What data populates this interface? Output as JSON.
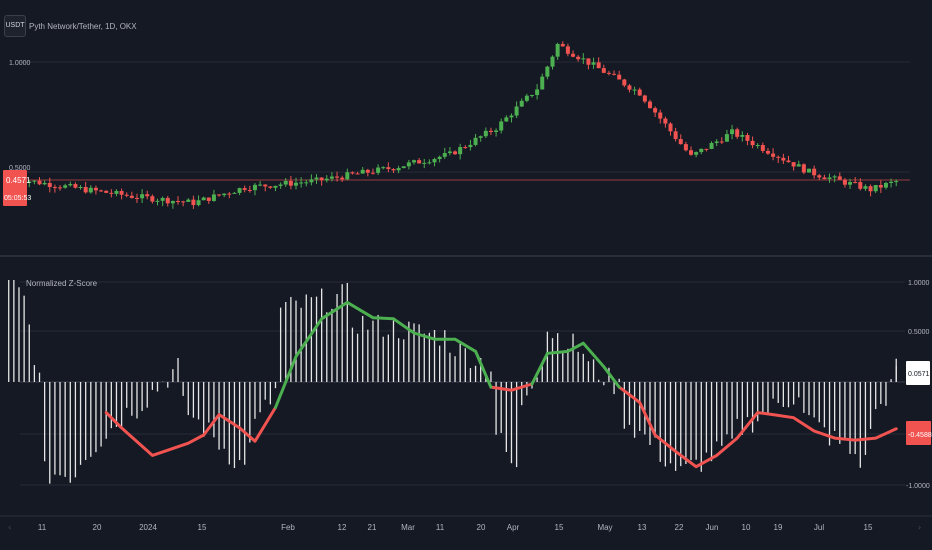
{
  "header": {
    "symbol_badge": "USDT",
    "symbol_title": "Pyth Network/Tether, 1D, OKX"
  },
  "price_axis": {
    "ticks": [
      "1.0000",
      "0.5000"
    ],
    "current_price": "0.4571",
    "countdown": "05:05:53"
  },
  "indicator": {
    "title": "Normalized Z-Score",
    "ticks": [
      "1.0000",
      "0.5000",
      "-1.0000"
    ],
    "last_bar_value": "0.0571",
    "last_line_value": "-0.4588"
  },
  "time_axis": {
    "labels": [
      "11",
      "20",
      "2024",
      "15",
      "Feb",
      "12",
      "21",
      "Mar",
      "11",
      "20",
      "Apr",
      "15",
      "May",
      "13",
      "22",
      "Jun",
      "10",
      "19",
      "Jul",
      "15"
    ]
  },
  "colors": {
    "background": "#151924",
    "bullish": "#4caf50",
    "bearish": "#f05350",
    "grid": "#262b37",
    "text": "#b2b5be",
    "histogram": "#e6e6e6"
  },
  "chart_data": [
    {
      "type": "candlestick",
      "title": "Pyth Network/Tether, 1D, OKX",
      "ylabel": "",
      "ylim": [
        0.3,
        1.15
      ],
      "y_ticks": [
        0.5,
        1.0
      ],
      "current_price": 0.4571,
      "segments": [
        {
          "from": "Dec 02",
          "to": "Dec 16",
          "start": 0.47,
          "end": 0.42
        },
        {
          "from": "Dec 16",
          "to": "Dec 25",
          "start": 0.42,
          "end": 0.39
        },
        {
          "from": "Dec 25",
          "to": "Jan 06",
          "start": 0.39,
          "end": 0.36
        },
        {
          "from": "Jan 06",
          "to": "Jan 16",
          "start": 0.36,
          "end": 0.43
        },
        {
          "from": "Jan 16",
          "to": "Jan 30",
          "start": 0.43,
          "end": 0.46
        },
        {
          "from": "Jan 30",
          "to": "Feb 14",
          "start": 0.46,
          "end": 0.52
        },
        {
          "from": "Feb 14",
          "to": "Feb 25",
          "start": 0.52,
          "end": 0.58
        },
        {
          "from": "Feb 25",
          "to": "Mar 05",
          "start": 0.58,
          "end": 0.7
        },
        {
          "from": "Mar 05",
          "to": "Mar 13",
          "start": 0.7,
          "end": 0.88
        },
        {
          "from": "Mar 13",
          "to": "Mar 17",
          "start": 0.88,
          "end": 1.08
        },
        {
          "from": "Mar 17",
          "to": "Mar 25",
          "start": 1.08,
          "end": 0.97
        },
        {
          "from": "Mar 25",
          "to": "Apr 02",
          "start": 0.97,
          "end": 0.86
        },
        {
          "from": "Apr 02",
          "to": "Apr 12",
          "start": 0.86,
          "end": 0.57
        },
        {
          "from": "Apr 12",
          "to": "Apr 20",
          "start": 0.57,
          "end": 0.68
        },
        {
          "from": "Apr 20",
          "to": "May 05",
          "start": 0.68,
          "end": 0.5
        },
        {
          "from": "May 05",
          "to": "May 17",
          "start": 0.5,
          "end": 0.42
        },
        {
          "from": "May 17",
          "to": "May 22",
          "start": 0.42,
          "end": 0.4571
        }
      ]
    },
    {
      "type": "line",
      "title": "Normalized Z-Score",
      "ylabel": "",
      "ylim": [
        -1.0,
        1.0
      ],
      "y_ticks": [
        -1.0,
        0.5,
        1.0
      ],
      "zero_line": true,
      "last_histogram_value": 0.0571,
      "last_line_value": -0.4588,
      "line_points": [
        {
          "x": "Dec 20",
          "y": -0.3
        },
        {
          "x": "Dec 23",
          "y": -0.45
        },
        {
          "x": "Dec 29",
          "y": -0.72
        },
        {
          "x": "Jan 05",
          "y": -0.6
        },
        {
          "x": "Jan 08",
          "y": -0.52
        },
        {
          "x": "Jan 11",
          "y": -0.32
        },
        {
          "x": "Jan 15",
          "y": -0.45
        },
        {
          "x": "Jan 18",
          "y": -0.58
        },
        {
          "x": "Jan 22",
          "y": -0.25
        },
        {
          "x": "Jan 26",
          "y": 0.25
        },
        {
          "x": "Jan 31",
          "y": 0.62
        },
        {
          "x": "Feb 05",
          "y": 0.78
        },
        {
          "x": "Feb 10",
          "y": 0.63
        },
        {
          "x": "Feb 14",
          "y": 0.62
        },
        {
          "x": "Feb 18",
          "y": 0.48
        },
        {
          "x": "Feb 22",
          "y": 0.42
        },
        {
          "x": "Feb 26",
          "y": 0.42
        },
        {
          "x": "Mar 01",
          "y": 0.3
        },
        {
          "x": "Mar 04",
          "y": -0.05
        },
        {
          "x": "Mar 08",
          "y": -0.08
        },
        {
          "x": "Mar 12",
          "y": -0.02
        },
        {
          "x": "Mar 15",
          "y": 0.28
        },
        {
          "x": "Mar 19",
          "y": 0.3
        },
        {
          "x": "Mar 22",
          "y": 0.38
        },
        {
          "x": "Mar 26",
          "y": 0.15
        },
        {
          "x": "Mar 29",
          "y": -0.05
        },
        {
          "x": "Apr 02",
          "y": -0.2
        },
        {
          "x": "Apr 05",
          "y": -0.52
        },
        {
          "x": "Apr 09",
          "y": -0.68
        },
        {
          "x": "Apr 13",
          "y": -0.83
        },
        {
          "x": "Apr 17",
          "y": -0.72
        },
        {
          "x": "Apr 21",
          "y": -0.55
        },
        {
          "x": "Apr 25",
          "y": -0.3
        },
        {
          "x": "Apr 28",
          "y": -0.32
        },
        {
          "x": "May 02",
          "y": -0.35
        },
        {
          "x": "May 06",
          "y": -0.48
        },
        {
          "x": "May 10",
          "y": -0.55
        },
        {
          "x": "May 14",
          "y": -0.57
        },
        {
          "x": "May 18",
          "y": -0.55
        },
        {
          "x": "May 22",
          "y": -0.4588
        }
      ],
      "histogram_segments": [
        {
          "from": "Dec 01",
          "to": "Dec 04",
          "start": 1.0,
          "end": 0.8
        },
        {
          "from": "Dec 04",
          "to": "Dec 07",
          "start": 0.8,
          "end": 0.02
        },
        {
          "from": "Dec 07",
          "to": "Dec 14",
          "start": -0.9,
          "end": -0.9
        },
        {
          "from": "Dec 14",
          "to": "Dec 25",
          "start": -0.8,
          "end": -0.25
        },
        {
          "from": "Dec 25",
          "to": "Jan 03",
          "start": -0.3,
          "end": 0.15
        },
        {
          "from": "Jan 03",
          "to": "Jan 16",
          "start": -0.2,
          "end": -0.85
        },
        {
          "from": "Jan 16",
          "to": "Jan 22",
          "start": -0.6,
          "end": -0.1
        },
        {
          "from": "Jan 22",
          "to": "Feb 05",
          "start": 0.7,
          "end": 0.85
        },
        {
          "from": "Feb 05",
          "to": "Feb 24",
          "start": 0.6,
          "end": 0.45
        },
        {
          "from": "Feb 24",
          "to": "Mar 04",
          "start": 0.4,
          "end": 0.15
        },
        {
          "from": "Mar 04",
          "to": "Mar 09",
          "start": -0.4,
          "end": -0.9
        },
        {
          "from": "Mar 09",
          "to": "Mar 14",
          "start": -0.3,
          "end": 0.25
        },
        {
          "from": "Mar 14",
          "to": "Mar 22",
          "start": 0.55,
          "end": 0.3
        },
        {
          "from": "Mar 22",
          "to": "Mar 29",
          "start": 0.2,
          "end": -0.05
        },
        {
          "from": "Mar 29",
          "to": "Apr 10",
          "start": -0.3,
          "end": -0.9
        },
        {
          "from": "Apr 10",
          "to": "Apr 20",
          "start": -0.9,
          "end": -0.6
        },
        {
          "from": "Apr 20",
          "to": "May 03",
          "start": -0.5,
          "end": -0.1
        },
        {
          "from": "May 03",
          "to": "May 16",
          "start": -0.3,
          "end": -0.8
        },
        {
          "from": "May 16",
          "to": "May 22",
          "start": -0.5,
          "end": 0.05
        }
      ]
    }
  ]
}
